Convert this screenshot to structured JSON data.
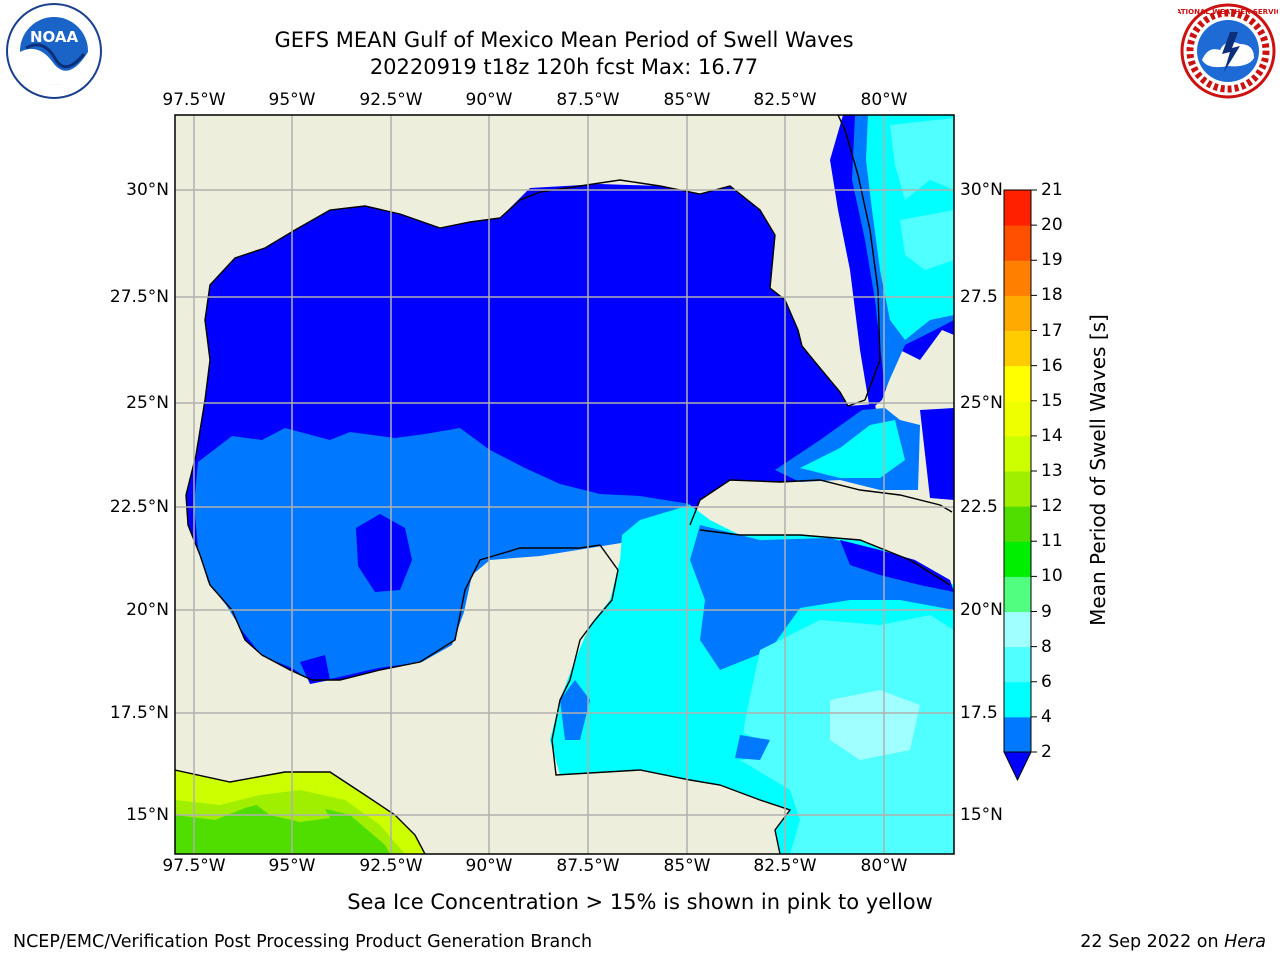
{
  "title": {
    "line1": "GEFS MEAN Gulf of Mexico Mean Period of Swell Waves",
    "line2": "20220919 t18z 120h fcst   Max: 16.77"
  },
  "map": {
    "lon_labels": [
      "97.5°W",
      "95°W",
      "92.5°W",
      "90°W",
      "87.5°W",
      "85°W",
      "82.5°W",
      "80°W"
    ],
    "lat_labels": [
      "30°N",
      "27.5°N",
      "25°N",
      "22.5°N",
      "20°N",
      "17.5°N",
      "15°N"
    ],
    "lat_labels_right": [
      "30°N",
      "27.5",
      "25°N",
      "22.5",
      "20°N",
      "17.5",
      "15°N"
    ],
    "lon_range": [
      -98,
      -78.75
    ],
    "lat_range": [
      14,
      31.75
    ],
    "land_color": "#eeeedc",
    "grid": true
  },
  "colorbar": {
    "label": "Mean Period of Swell Waves [s]",
    "ticks": [
      "2",
      "4",
      "6",
      "8",
      "9",
      "10",
      "11",
      "12",
      "13",
      "14",
      "15",
      "16",
      "17",
      "18",
      "19",
      "20",
      "21"
    ],
    "colors": [
      "#0000ff",
      "#0078ff",
      "#00ffff",
      "#50ffff",
      "#a0ffff",
      "#50ff80",
      "#00ee00",
      "#50dd00",
      "#a0ee00",
      "#ccff00",
      "#eeff00",
      "#ffff00",
      "#ffcc00",
      "#ffaa00",
      "#ff8000",
      "#ff5000",
      "#ff2000",
      "#ff0000"
    ]
  },
  "note": "Sea Ice Concentration > 15% is shown in pink to yellow",
  "footer": {
    "left": "NCEP/EMC/Verification Post Processing Product Generation Branch",
    "right_prefix": "22 Sep 2022 on ",
    "right_host": "Hera"
  },
  "logos": {
    "noaa_text": "NOAA",
    "nws_text": "NATIONAL WEATHER SERVICE"
  }
}
